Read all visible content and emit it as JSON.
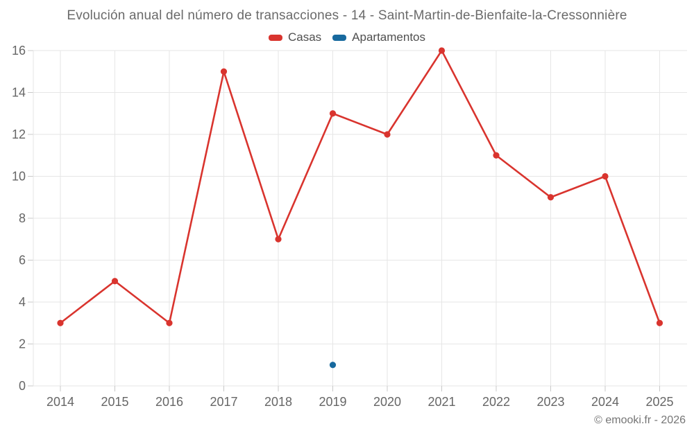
{
  "chart_data": {
    "type": "line",
    "title": "Evolución anual del número de transacciones - 14 - Saint-Martin-de-Bienfaite-la-Cressonnière",
    "categories": [
      "2014",
      "2015",
      "2016",
      "2017",
      "2018",
      "2019",
      "2020",
      "2021",
      "2022",
      "2023",
      "2024",
      "2025"
    ],
    "series": [
      {
        "name": "Casas",
        "color": "#d9342e",
        "values": [
          3,
          5,
          3,
          15,
          7,
          13,
          12,
          16,
          11,
          9,
          10,
          3
        ]
      },
      {
        "name": "Apartamentos",
        "color": "#17699e",
        "values": [
          null,
          null,
          null,
          null,
          null,
          1,
          null,
          null,
          null,
          null,
          null,
          null
        ]
      }
    ],
    "xlabel": "",
    "ylabel": "",
    "ylim": [
      0,
      16
    ],
    "ytick_step": 2,
    "grid": true,
    "legend_position": "top"
  },
  "footer": {
    "copyright": "© emooki.fr - 2026"
  },
  "colors": {
    "background": "#ffffff",
    "grid": "#e6e6e6",
    "tick": "#c8c8c8",
    "axis_label": "#666666",
    "title": "#6a6a6a",
    "legend_label": "#4f4f4f",
    "copyright": "#757575"
  }
}
